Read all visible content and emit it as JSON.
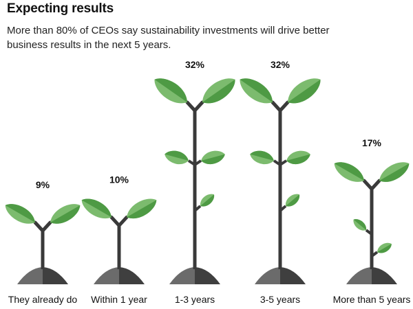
{
  "header": {
    "title": "Expecting results",
    "subtitle": "More than 80% of CEOs say sustainability investments will drive better business results in the next 5 years."
  },
  "colors": {
    "leaf_light": "#7cbb6e",
    "leaf_dark": "#4e9a44",
    "stem": "#3a3a3a",
    "soil_light": "#6b6b6b",
    "soil_dark": "#3f3f3f"
  },
  "chart_data": {
    "type": "bar",
    "title": "",
    "categories": [
      "They already do",
      "Within 1 year",
      "1-3 years",
      "3-5 years",
      "More than 5 years"
    ],
    "values": [
      9,
      10,
      32,
      32,
      17
    ],
    "labels": [
      "9%",
      "10%",
      "32%",
      "32%",
      "17%"
    ],
    "unit": "%",
    "ylim": [
      0,
      32
    ]
  }
}
